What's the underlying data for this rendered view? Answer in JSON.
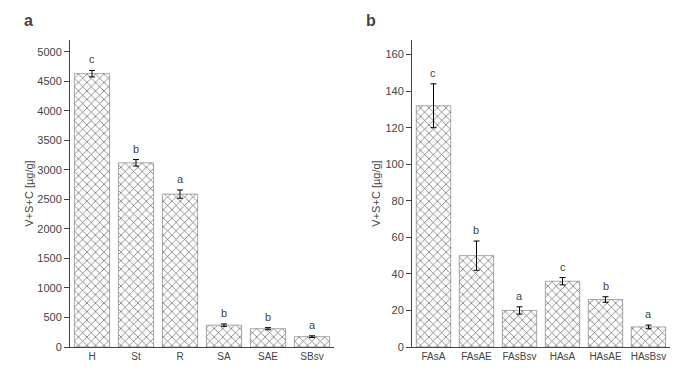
{
  "chart_data": [
    {
      "type": "bar",
      "title": "a",
      "categories": [
        "H",
        "St",
        "R",
        "SA",
        "SAE",
        "SBsv"
      ],
      "values": [
        4630,
        3120,
        2590,
        370,
        310,
        175
      ],
      "errors": [
        55,
        55,
        70,
        20,
        18,
        15
      ],
      "annotations": [
        "c",
        "b",
        "a",
        "b",
        "b",
        "a"
      ],
      "ylabel": "V+S+C [µg/g]",
      "ylim": [
        0,
        5200
      ],
      "yticks": [
        0,
        500,
        1000,
        1500,
        2000,
        2500,
        3000,
        3500,
        4000,
        4500,
        5000
      ],
      "color": "#c8b89a",
      "grid": false
    },
    {
      "type": "bar",
      "title": "b",
      "categories": [
        "FAsA",
        "FAsAE",
        "FAsBsv",
        "HAsA",
        "HAsAE",
        "HAsBsv"
      ],
      "values": [
        132,
        50,
        20,
        36,
        26,
        11
      ],
      "errors": [
        12,
        8,
        2,
        2,
        1.5,
        1
      ],
      "annotations": [
        "c",
        "b",
        "a",
        "c",
        "b",
        "a"
      ],
      "ylabel": "V+S+C [µg/g]",
      "ylim": [
        0,
        168
      ],
      "yticks": [
        0,
        20,
        40,
        60,
        80,
        100,
        120,
        140,
        160
      ],
      "color": "#c8b89a",
      "grid": false
    }
  ]
}
